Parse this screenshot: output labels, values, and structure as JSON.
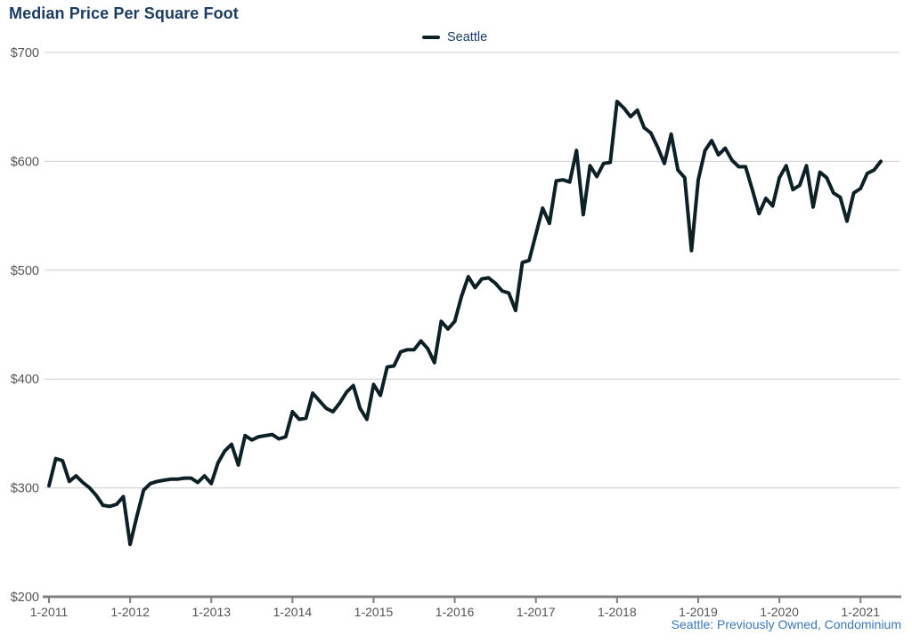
{
  "chart_data": {
    "type": "line",
    "title": "Median Price Per Square Foot",
    "footnote": "Seattle: Previously Owned, Condominium",
    "legend_position": "top-center",
    "grid": "horizontal-only",
    "x_unit": "month",
    "x_tick_labels": [
      "1-2011",
      "1-2012",
      "1-2013",
      "1-2014",
      "1-2015",
      "1-2016",
      "1-2017",
      "1-2018",
      "1-2019",
      "1-2020",
      "1-2021"
    ],
    "x_ticks_every_n_months": 12,
    "y_tick_labels": [
      "$700",
      "$600",
      "$500",
      "$400",
      "$300",
      "$200"
    ],
    "ylim": [
      200,
      700
    ],
    "series": [
      {
        "name": "Seattle",
        "start": "1-2011",
        "values": [
          302,
          327,
          325,
          306,
          311,
          305,
          300,
          293,
          284,
          283,
          285,
          292,
          248,
          274,
          298,
          304,
          306,
          307,
          308,
          308,
          309,
          309,
          305,
          311,
          304,
          323,
          334,
          340,
          321,
          348,
          344,
          347,
          348,
          349,
          345,
          347,
          370,
          363,
          364,
          387,
          380,
          373,
          370,
          378,
          388,
          394,
          373,
          363,
          395,
          385,
          411,
          412,
          425,
          427,
          427,
          435,
          428,
          415,
          453,
          446,
          453,
          476,
          494,
          484,
          492,
          493,
          488,
          481,
          479,
          463,
          507,
          509,
          533,
          557,
          543,
          582,
          583,
          581,
          610,
          551,
          596,
          586,
          598,
          599,
          655,
          649,
          641,
          647,
          631,
          626,
          613,
          598,
          625,
          592,
          585,
          518,
          583,
          610,
          619,
          606,
          612,
          601,
          595,
          595,
          574,
          552,
          566,
          559,
          585,
          596,
          574,
          578,
          596,
          558,
          590,
          585,
          571,
          567,
          545,
          571,
          575,
          589,
          592,
          600
        ]
      }
    ]
  },
  "style": {
    "title_color": "#1d3c63",
    "legend_text_color": "#1d3c63",
    "line_color": "#0d2026",
    "grid_color": "#cccccc",
    "axis_color": "#7f7f7f",
    "tick_label_color": "#555555",
    "footnote_color": "#3a78b3"
  }
}
